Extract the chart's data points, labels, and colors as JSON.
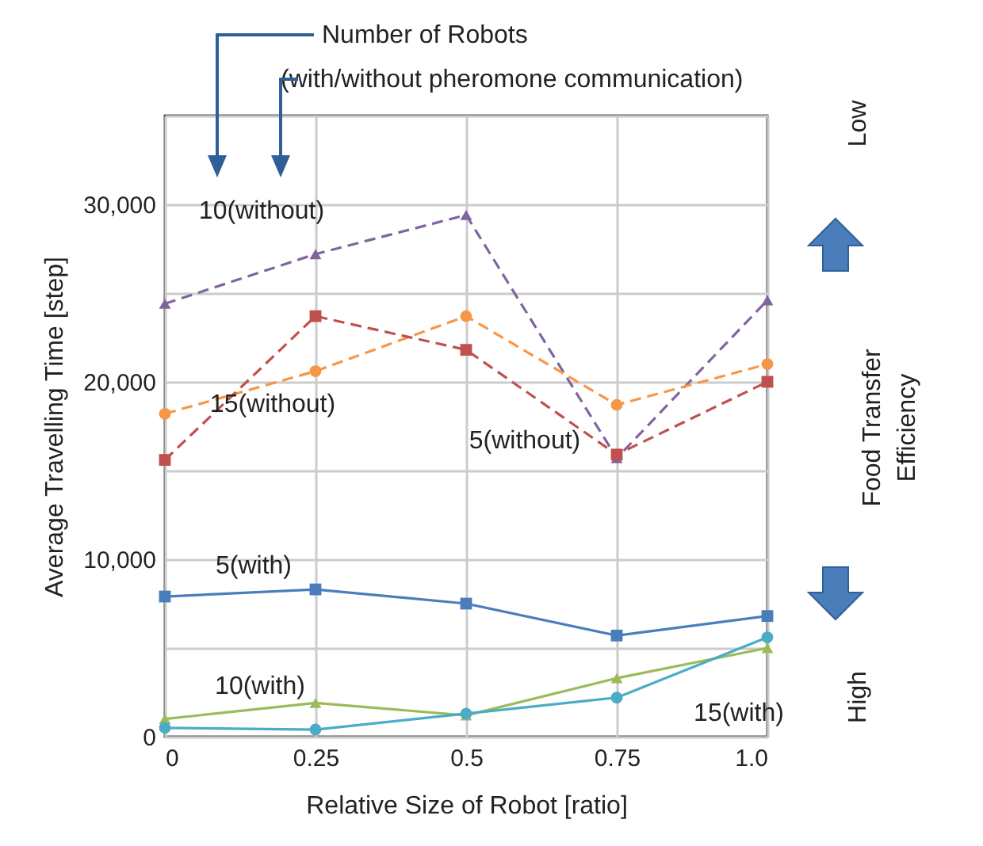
{
  "chart_data": {
    "type": "line",
    "xlabel": "Relative Size of Robot [ratio]",
    "ylabel": "Average Travelling Time  [step]",
    "x": [
      0,
      0.25,
      0.5,
      0.75,
      1.0
    ],
    "xlim": [
      0,
      1
    ],
    "xticks": [
      0,
      0.25,
      0.5,
      0.75,
      {
        "value": 1,
        "label": "1.0"
      }
    ],
    "ylim": [
      0,
      35000
    ],
    "yticks": [
      {
        "value": 0,
        "label": "0"
      },
      {
        "value": 5000,
        "label": null
      },
      {
        "value": 10000,
        "label": "10,000"
      },
      {
        "value": 15000,
        "label": null
      },
      {
        "value": 20000,
        "label": "20,000"
      },
      {
        "value": 25000,
        "label": null
      },
      {
        "value": 30000,
        "label": "30,000"
      },
      {
        "value": 35000,
        "label": null
      }
    ],
    "grid": true,
    "series": [
      {
        "name": "10(without)",
        "color": "#8064a2",
        "marker": "triangle",
        "line_style": "dashed",
        "values": [
          24400,
          27200,
          29400,
          15700,
          24600
        ]
      },
      {
        "name": "15(without)",
        "color": "#f79646",
        "marker": "circle",
        "line_style": "dashed",
        "values": [
          18200,
          20600,
          23700,
          18700,
          21000
        ]
      },
      {
        "name": "5(without)",
        "color": "#c0504d",
        "marker": "square",
        "line_style": "dashed",
        "values": [
          15600,
          23700,
          21800,
          15900,
          20000
        ]
      },
      {
        "name": "5(with)",
        "color": "#4a7ebb",
        "marker": "square",
        "line_style": "solid",
        "values": [
          7900,
          8300,
          7500,
          5700,
          6800
        ]
      },
      {
        "name": "10(with)",
        "color": "#9bbb59",
        "marker": "triangle",
        "line_style": "solid",
        "values": [
          1000,
          1900,
          1200,
          3300,
          5000
        ]
      },
      {
        "name": "15(with)",
        "color": "#4bacc6",
        "marker": "circle",
        "line_style": "solid",
        "values": [
          500,
          400,
          1300,
          2200,
          5600
        ]
      }
    ],
    "annotations": [
      "Number of Robots",
      "(with/without pheromone communication)",
      "Low",
      "Food Transfer Efficiency",
      "High"
    ]
  }
}
